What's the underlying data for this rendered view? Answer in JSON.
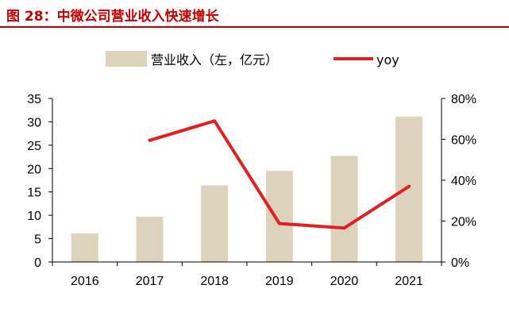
{
  "title": "图 28：中微公司营业收入快速增长",
  "chart_data": {
    "type": "bar",
    "categories": [
      "2016",
      "2017",
      "2018",
      "2019",
      "2020",
      "2021"
    ],
    "series": [
      {
        "name": "营业收入（左，亿元）",
        "type": "bar",
        "axis": "left",
        "values": [
          6.1,
          9.7,
          16.4,
          19.5,
          22.7,
          31.1
        ],
        "color": "#ddd3bd"
      },
      {
        "name": "yoy",
        "type": "line",
        "axis": "right",
        "values": [
          null,
          59.5,
          69,
          18.8,
          16.6,
          37
        ],
        "color": "#e02020"
      }
    ],
    "left_axis": {
      "ylim": [
        0,
        35
      ],
      "ticks": [
        "0",
        "5",
        "10",
        "15",
        "20",
        "25",
        "30",
        "35"
      ]
    },
    "right_axis": {
      "ylim": [
        0,
        80
      ],
      "ticks": [
        "0%",
        "20%",
        "40%",
        "60%",
        "80%"
      ]
    },
    "legend_position": "top-center",
    "grid": false
  }
}
